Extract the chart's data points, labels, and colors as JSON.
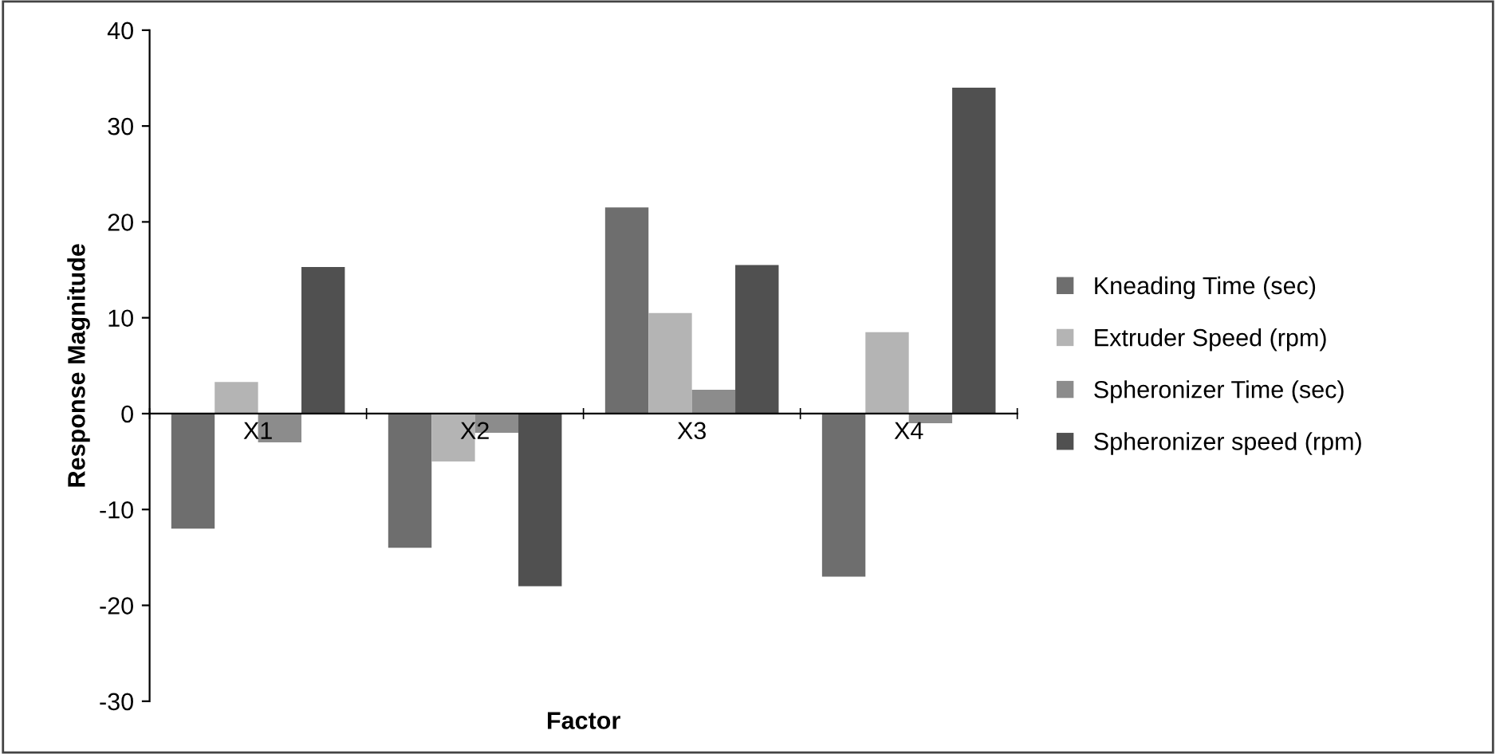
{
  "chart_data": {
    "type": "bar",
    "xlabel": "Factor",
    "ylabel": "Response Magnitude",
    "categories": [
      "X1",
      "X2",
      "X3",
      "X4"
    ],
    "series": [
      {
        "name": "Kneading Time (sec)",
        "color": "#6e6e6e",
        "values": [
          -12,
          -14,
          21.5,
          -17
        ]
      },
      {
        "name": "Extruder Speed (rpm)",
        "color": "#b4b4b4",
        "values": [
          3.3,
          -5,
          10.5,
          8.5
        ]
      },
      {
        "name": "Spheronizer Time (sec)",
        "color": "#8c8c8c",
        "values": [
          -3,
          -2,
          2.5,
          -1
        ]
      },
      {
        "name": "Spheronizer speed (rpm)",
        "color": "#505050",
        "values": [
          15.3,
          -18,
          15.5,
          34
        ]
      }
    ],
    "ylim": [
      -30,
      40
    ],
    "yticks": [
      -30,
      -20,
      -10,
      0,
      10,
      20,
      30,
      40
    ],
    "grid": false,
    "legend": "right"
  }
}
